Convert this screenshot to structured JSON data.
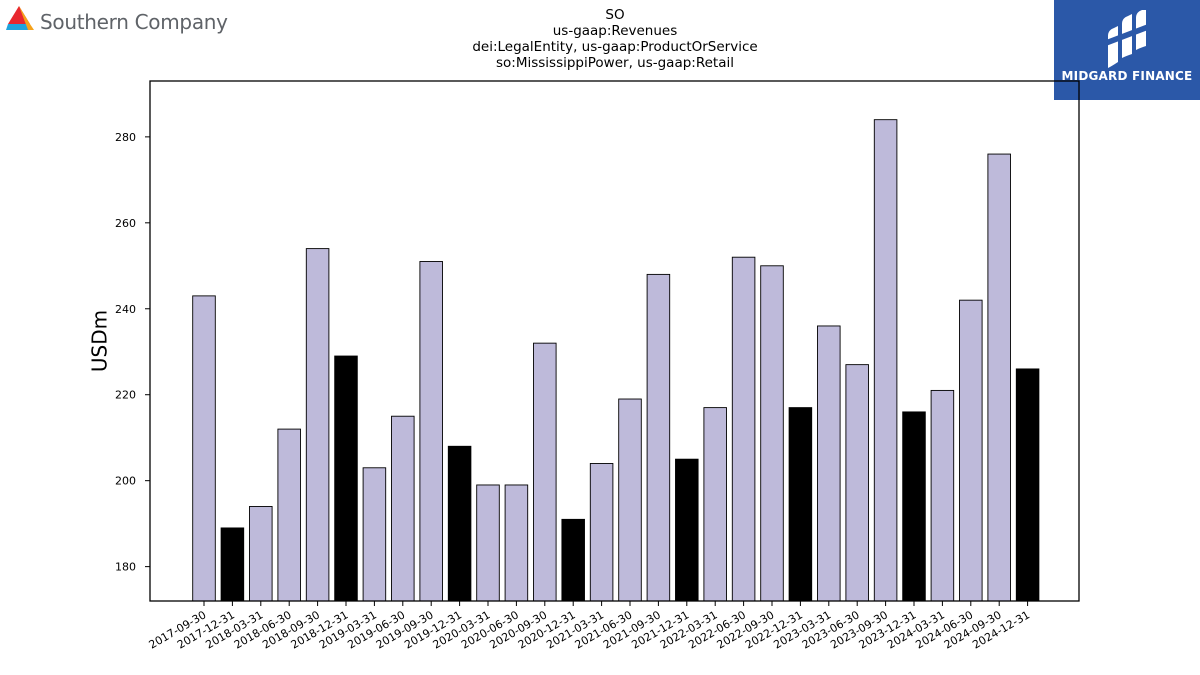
{
  "header": {
    "company_name": "Southern Company",
    "logo_icon": "southern-company-triangle-icon",
    "badge_icon": "midgard-logo-icon",
    "badge_text": "MIDGARD FINANCE",
    "badge_color": "#2b58a8"
  },
  "chart_data": {
    "type": "bar",
    "title_lines": [
      "SO",
      "us-gaap:Revenues",
      "dei:LegalEntity, us-gaap:ProductOrService",
      "so:MississippiPower, us-gaap:Retail"
    ],
    "xlabel": "",
    "ylabel": "USDm",
    "ylim": [
      172,
      293
    ],
    "yticks": [
      180,
      200,
      220,
      240,
      260,
      280
    ],
    "categories": [
      "2017-09-30",
      "2017-12-31",
      "2018-03-31",
      "2018-06-30",
      "2018-09-30",
      "2018-12-31",
      "2019-03-31",
      "2019-06-30",
      "2019-09-30",
      "2019-12-31",
      "2020-03-31",
      "2020-06-30",
      "2020-09-30",
      "2020-12-31",
      "2021-03-31",
      "2021-06-30",
      "2021-09-30",
      "2021-12-31",
      "2022-03-31",
      "2022-06-30",
      "2022-09-30",
      "2022-12-31",
      "2023-03-31",
      "2023-06-30",
      "2023-09-30",
      "2023-12-31",
      "2024-03-31",
      "2024-06-30",
      "2024-09-30",
      "2024-12-31"
    ],
    "values": [
      243,
      189,
      194,
      212,
      254,
      229,
      203,
      215,
      251,
      208,
      199,
      199,
      232,
      191,
      204,
      219,
      248,
      205,
      217,
      252,
      250,
      217,
      236,
      227,
      284,
      216,
      221,
      242,
      276,
      226
    ],
    "highlight": [
      false,
      true,
      false,
      false,
      false,
      true,
      false,
      false,
      false,
      true,
      false,
      false,
      false,
      true,
      false,
      false,
      false,
      true,
      false,
      false,
      false,
      true,
      false,
      false,
      false,
      true,
      false,
      false,
      false,
      true
    ],
    "colors": {
      "quarter": "#bebada",
      "year_end": "#000000",
      "edge": "#000000"
    },
    "grid": false,
    "legend": "none"
  }
}
